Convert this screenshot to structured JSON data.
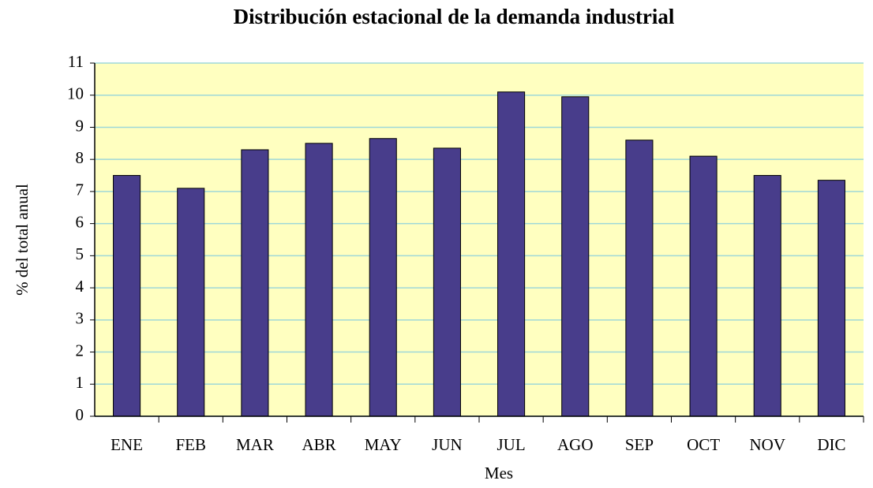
{
  "chart_data": {
    "type": "bar",
    "title": "Distribución estacional de la demanda industrial",
    "x_label": "Mes",
    "y_label": "% del total anual",
    "categories": [
      "ENE",
      "FEB",
      "MAR",
      "ABR",
      "MAY",
      "JUN",
      "JUL",
      "AGO",
      "SEP",
      "OCT",
      "NOV",
      "DIC"
    ],
    "values": [
      7.5,
      7.1,
      8.3,
      8.5,
      8.65,
      8.35,
      10.1,
      9.95,
      8.6,
      8.1,
      7.5,
      7.35
    ],
    "color": "#483d8b",
    "plot_background": "#ffffc0",
    "grid_color": "#9fd8d8",
    "ylim": [
      0,
      11
    ],
    "yticks": [
      0,
      1,
      2,
      3,
      4,
      5,
      6,
      7,
      8,
      9,
      10,
      11
    ],
    "grid": true
  }
}
